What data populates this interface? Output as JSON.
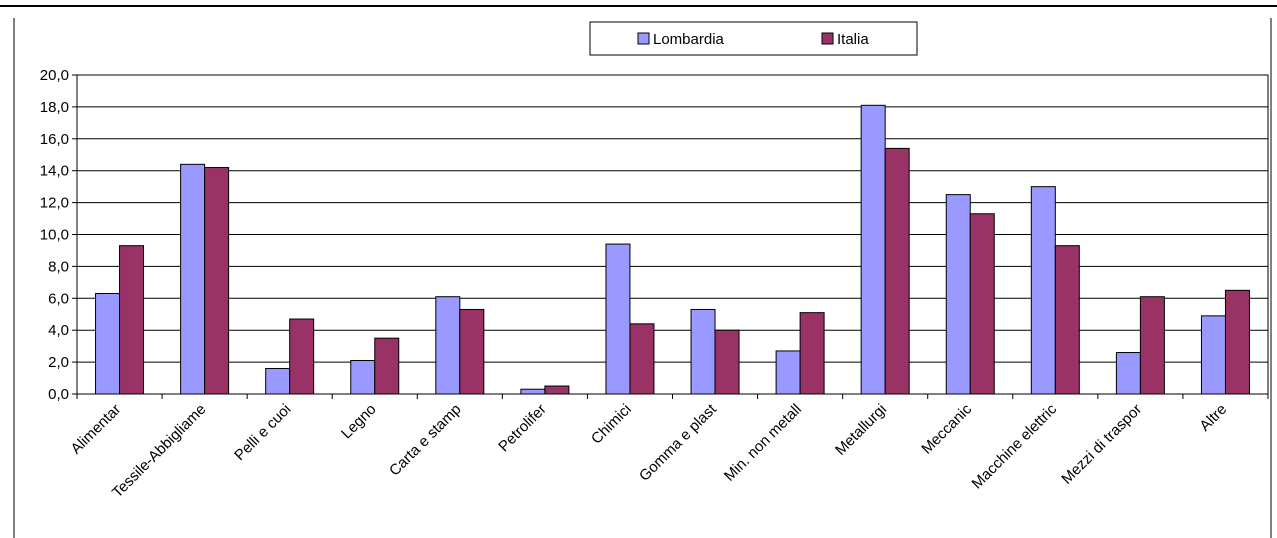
{
  "chart_data": {
    "type": "bar",
    "categories": [
      "Alimentar",
      "Tessile-Abbigliame",
      "Pelli e cuoi",
      "Legno",
      "Carta e stamp",
      "Petrolifer",
      "Chimici",
      "Gomma e plast",
      "Min. non metall",
      "Metallurgi",
      "Meccanic",
      "Macchine elettric",
      "Mezzi di traspor",
      "Altre"
    ],
    "series": [
      {
        "name": "Lombardia",
        "color": "#9999ff",
        "values": [
          6.3,
          14.4,
          1.6,
          2.1,
          6.1,
          0.3,
          9.4,
          5.3,
          2.7,
          18.1,
          12.5,
          13.0,
          2.6,
          4.9
        ]
      },
      {
        "name": "Italia",
        "color": "#993366",
        "values": [
          9.3,
          14.2,
          4.7,
          3.5,
          5.3,
          0.5,
          4.4,
          4.0,
          5.1,
          15.4,
          11.3,
          9.3,
          6.1,
          6.5
        ]
      }
    ],
    "y_ticks": [
      "0,0",
      "2,0",
      "4,0",
      "6,0",
      "8,0",
      "10,0",
      "12,0",
      "14,0",
      "16,0",
      "18,0",
      "20,0"
    ],
    "ylim": [
      0,
      20
    ],
    "grid": true,
    "legend_position": "top-center"
  }
}
